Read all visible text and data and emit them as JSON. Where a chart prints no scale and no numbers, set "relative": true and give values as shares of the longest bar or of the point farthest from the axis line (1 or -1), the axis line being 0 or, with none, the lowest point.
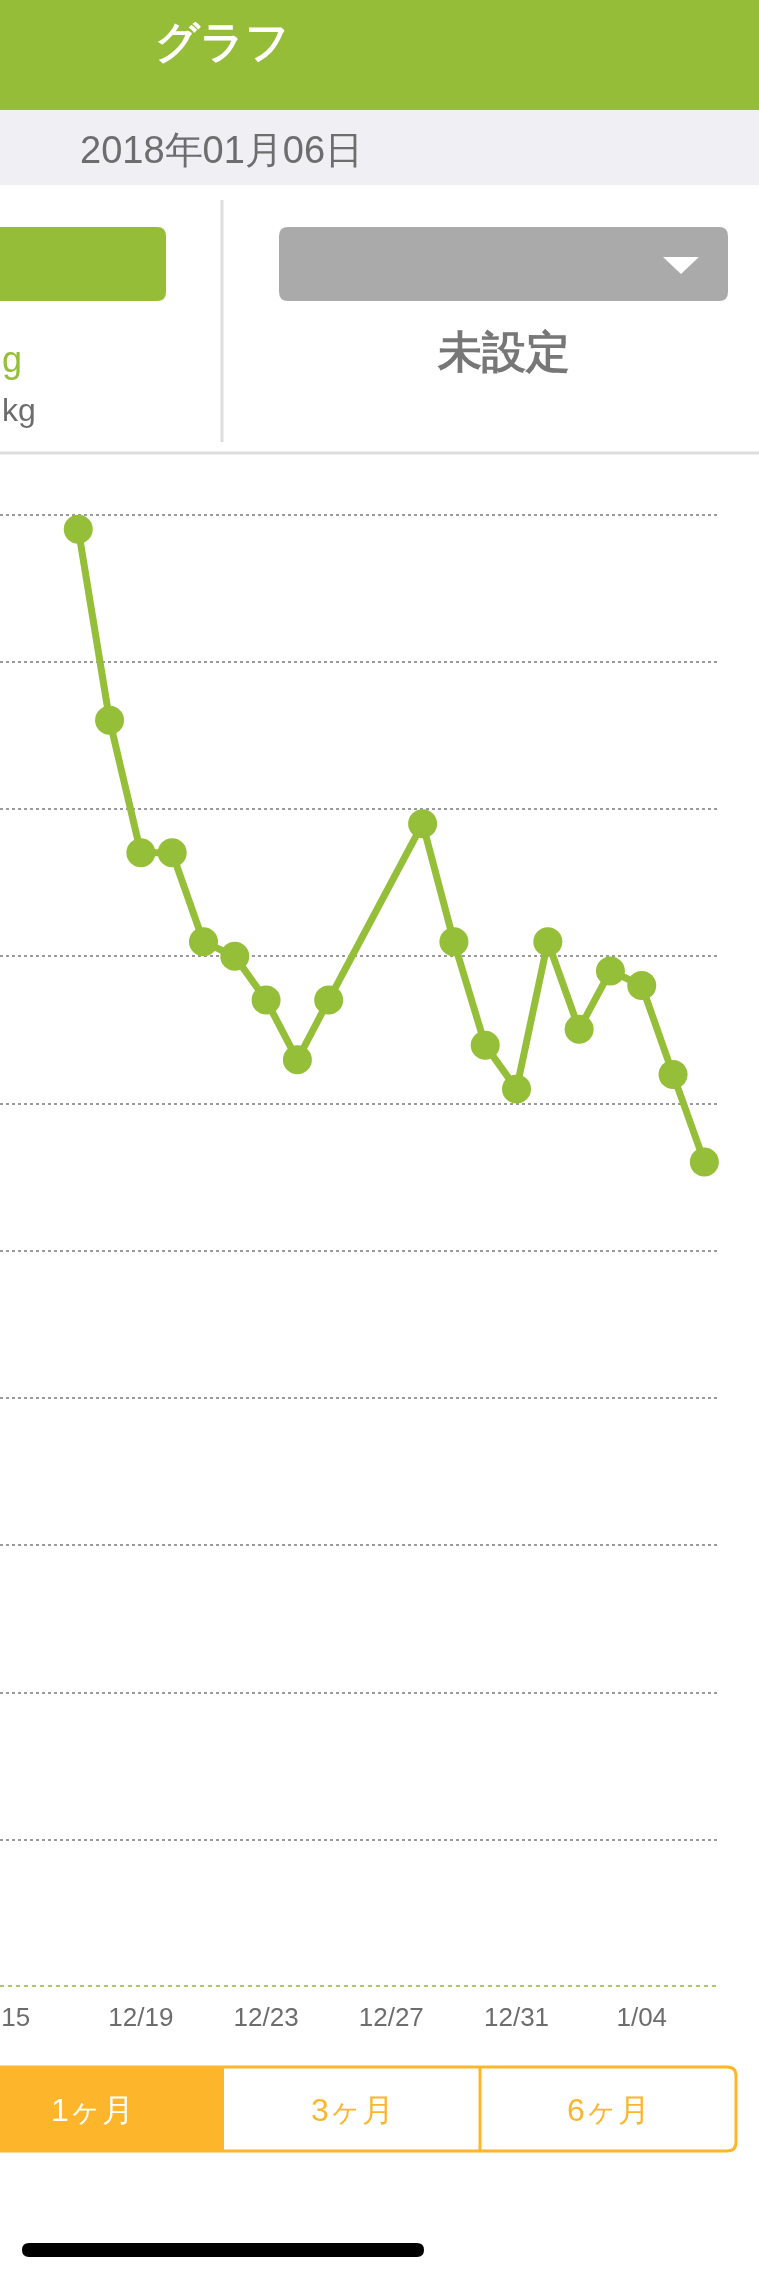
{
  "chart_data": {
    "type": "line",
    "title": "グラフ",
    "subtitle": "2018年01月06日",
    "annotations": [
      "g",
      "kg",
      "未設定",
      "1ヶ月",
      "3ヶ月",
      "6ヶ月"
    ],
    "x": [
      "2017-12-17",
      "2017-12-18",
      "2017-12-19",
      "2017-12-20",
      "2017-12-21",
      "2017-12-22",
      "2017-12-23",
      "2017-12-24",
      "2017-12-25",
      "2017-12-28",
      "2017-12-29",
      "2017-12-30",
      "2017-12-31",
      "2018-01-01",
      "2018-01-02",
      "2018-01-03",
      "2018-01-04",
      "2018-01-05",
      "2018-01-06"
    ],
    "series": [
      {
        "color": "#95be39",
        "values": [
          1,
          0.869,
          0.778,
          0.778,
          0.717,
          0.707,
          0.677,
          0.636,
          0.677,
          0.798,
          0.717,
          0.646,
          0.616,
          0.717,
          0.657,
          0.697,
          0.687,
          0.626,
          0.566
        ]
      }
    ],
    "relative": true,
    "xlim": [
      "2017-12-14T12:00",
      "2018-01-06T12:00"
    ],
    "xticks": [
      {
        "value": "2017-12-15",
        "label": "15"
      },
      {
        "value": "2017-12-19",
        "label": "12/19"
      },
      {
        "value": "2017-12-23",
        "label": "12/23"
      },
      {
        "value": "2017-12-27",
        "label": "12/27"
      },
      {
        "value": "2017-12-31",
        "label": "12/31"
      },
      {
        "value": "2018-01-04",
        "label": "1/04"
      }
    ],
    "grid": "y",
    "marker": "circle",
    "line_style": "solid"
  }
}
